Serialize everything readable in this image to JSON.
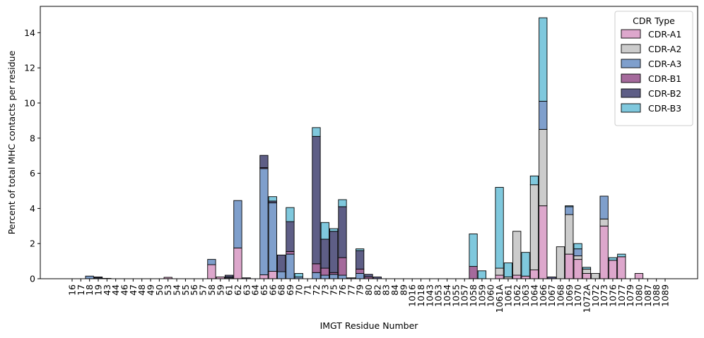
{
  "chart_data": {
    "type": "bar",
    "stacked": true,
    "title": "",
    "xlabel": "IMGT Residue Number",
    "ylabel": "Percent of total MHC contacts per residue",
    "ylim": [
      0,
      15.5
    ],
    "yticks": [
      0,
      2,
      4,
      6,
      8,
      10,
      12,
      14
    ],
    "grid": false,
    "legend": {
      "title": "CDR Type",
      "placement": "top-right"
    },
    "categories": [
      "16",
      "17",
      "18",
      "19",
      "43",
      "44",
      "46",
      "47",
      "48",
      "49",
      "50",
      "53",
      "54",
      "55",
      "56",
      "57",
      "58",
      "59",
      "61",
      "62",
      "63",
      "64",
      "65",
      "66",
      "68",
      "69",
      "70",
      "71",
      "72",
      "73",
      "75",
      "76",
      "77",
      "79",
      "80",
      "82",
      "83",
      "84",
      "89",
      "1016",
      "1018",
      "1043",
      "1053",
      "1054",
      "1055",
      "1057",
      "1058",
      "1059",
      "1060",
      "1061A",
      "1061",
      "1062",
      "1063",
      "1064",
      "1066",
      "1067",
      "1068",
      "1069",
      "1070",
      "1072A",
      "1072",
      "1073",
      "1076",
      "1077",
      "1079",
      "1080",
      "1087",
      "1088",
      "1089"
    ],
    "series": [
      {
        "name": "CDR-A1",
        "color": "#dda7cc",
        "values": [
          0,
          0,
          0,
          0,
          0,
          0,
          0,
          0,
          0,
          0,
          0,
          0.08,
          0,
          0,
          0,
          0,
          0.8,
          0.1,
          0.05,
          1.75,
          0,
          0,
          0.22,
          0.42,
          0,
          0,
          0,
          0,
          0,
          0,
          0,
          0,
          0,
          0,
          0,
          0,
          0,
          0,
          0,
          0,
          0,
          0,
          0,
          0,
          0,
          0,
          0,
          0,
          0,
          0.2,
          0,
          0.2,
          0.15,
          0.5,
          4.15,
          0,
          0,
          1.4,
          1.1,
          0.3,
          0,
          3.0,
          1.05,
          1.25,
          0,
          0.3,
          0,
          0,
          0
        ]
      },
      {
        "name": "CDR-A2",
        "color": "#cccccc",
        "values": [
          0,
          0,
          0,
          0,
          0,
          0,
          0,
          0,
          0,
          0,
          0,
          0,
          0,
          0,
          0,
          0,
          0,
          0,
          0,
          0,
          0,
          0,
          0,
          0,
          0,
          0,
          0,
          0,
          0,
          0,
          0,
          0,
          0,
          0,
          0,
          0,
          0,
          0,
          0,
          0,
          0,
          0,
          0,
          0,
          0,
          0,
          0,
          0,
          0,
          0.4,
          0.1,
          2.5,
          0,
          4.85,
          4.35,
          0,
          1.82,
          2.25,
          0.2,
          0.25,
          0.3,
          0.4,
          0,
          0,
          0,
          0,
          0,
          0,
          0
        ]
      },
      {
        "name": "CDR-A3",
        "color": "#7f9fcc",
        "values": [
          0,
          0,
          0.15,
          0.05,
          0,
          0,
          0,
          0,
          0,
          0,
          0,
          0,
          0,
          0,
          0,
          0,
          0.3,
          0,
          0.05,
          2.7,
          0,
          0,
          6.05,
          3.9,
          0.4,
          1.4,
          0.1,
          0,
          0.35,
          0.2,
          0.25,
          0.2,
          0,
          0.3,
          0,
          0,
          0,
          0,
          0,
          0,
          0,
          0,
          0,
          0,
          0,
          0,
          0,
          0,
          0,
          0,
          0,
          0,
          0,
          0,
          1.6,
          0,
          0,
          0.45,
          0.4,
          0,
          0,
          1.3,
          0,
          0,
          0,
          0,
          0,
          0,
          0
        ]
      },
      {
        "name": "CDR-B1",
        "color": "#a56a9c",
        "values": [
          0,
          0,
          0,
          0,
          0,
          0,
          0,
          0,
          0,
          0,
          0,
          0,
          0,
          0,
          0,
          0,
          0,
          0,
          0,
          0,
          0,
          0,
          0.05,
          0,
          0,
          0.15,
          0,
          0,
          0.5,
          0.4,
          0.1,
          1.0,
          0,
          0.25,
          0.1,
          0,
          0,
          0,
          0,
          0,
          0,
          0,
          0,
          0,
          0,
          0,
          0.7,
          0,
          0,
          0,
          0,
          0,
          0,
          0,
          0,
          0,
          0,
          0,
          0,
          0,
          0,
          0,
          0,
          0,
          0,
          0,
          0,
          0,
          0
        ]
      },
      {
        "name": "CDR-B2",
        "color": "#5e5e86",
        "values": [
          0,
          0,
          0,
          0.05,
          0.02,
          0,
          0,
          0,
          0,
          0,
          0,
          0,
          0,
          0,
          0,
          0,
          0,
          0,
          0.1,
          0,
          0.05,
          0,
          0.7,
          0.1,
          0.95,
          1.7,
          0,
          0,
          7.25,
          1.65,
          2.35,
          2.9,
          0.05,
          1.05,
          0.15,
          0.1,
          0,
          0,
          0,
          0,
          0,
          0,
          0,
          0,
          0,
          0,
          0,
          0,
          0,
          0,
          0,
          0,
          0,
          0,
          0,
          0.1,
          0,
          0,
          0,
          0,
          0,
          0,
          0,
          0,
          0,
          0,
          0,
          0,
          0
        ]
      },
      {
        "name": "CDR-B3",
        "color": "#7fc8dd",
        "values": [
          0,
          0,
          0,
          0,
          0,
          0,
          0,
          0,
          0,
          0,
          0,
          0,
          0,
          0,
          0,
          0,
          0,
          0,
          0,
          0,
          0,
          0,
          0,
          0.25,
          0,
          0.8,
          0.2,
          0,
          0.5,
          0.95,
          0.15,
          0.4,
          0,
          0.1,
          0,
          0,
          0,
          0,
          0,
          0,
          0,
          0,
          0,
          0,
          0,
          0,
          1.85,
          0.45,
          0,
          4.6,
          0.8,
          0,
          1.35,
          0.5,
          4.75,
          0,
          0,
          0.05,
          0.3,
          0.1,
          0,
          0,
          0.15,
          0.15,
          0,
          0,
          0,
          0,
          0
        ]
      }
    ]
  }
}
